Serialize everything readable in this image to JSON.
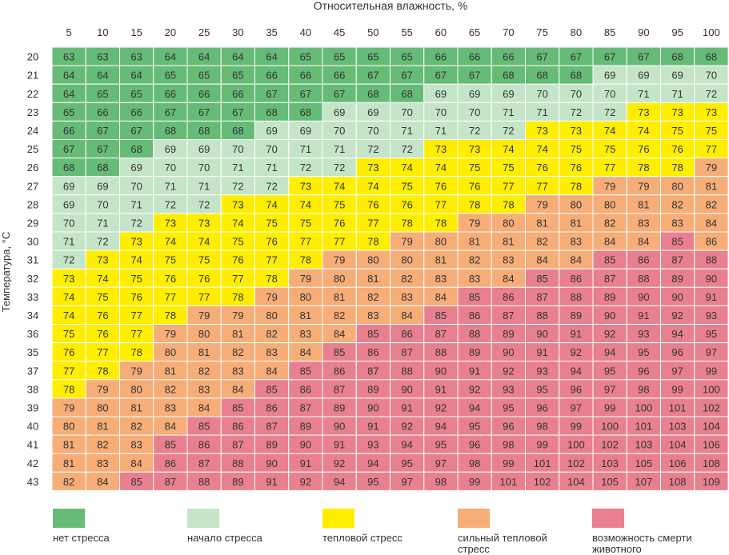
{
  "chart_data": {
    "type": "heatmap",
    "title": "",
    "xlabel": "Относительная влажность, %",
    "ylabel": "Температура, °C",
    "x": [
      5,
      10,
      15,
      20,
      25,
      30,
      35,
      40,
      45,
      50,
      55,
      60,
      65,
      70,
      75,
      80,
      85,
      90,
      95,
      100
    ],
    "y": [
      20,
      21,
      22,
      23,
      24,
      25,
      26,
      27,
      28,
      29,
      30,
      31,
      32,
      33,
      34,
      36,
      35,
      37,
      38,
      39,
      40,
      41,
      42,
      43
    ],
    "values": [
      [
        63,
        63,
        63,
        64,
        64,
        64,
        64,
        65,
        65,
        65,
        65,
        66,
        66,
        66,
        67,
        67,
        67,
        67,
        68,
        68
      ],
      [
        64,
        64,
        64,
        65,
        65,
        65,
        66,
        66,
        66,
        67,
        67,
        67,
        67,
        68,
        68,
        68,
        69,
        69,
        69,
        70
      ],
      [
        64,
        65,
        65,
        66,
        66,
        66,
        67,
        67,
        67,
        68,
        68,
        69,
        69,
        69,
        70,
        70,
        70,
        71,
        71,
        72
      ],
      [
        65,
        66,
        66,
        67,
        67,
        67,
        68,
        68,
        69,
        69,
        70,
        70,
        70,
        71,
        71,
        72,
        72,
        73,
        73,
        73
      ],
      [
        66,
        67,
        67,
        68,
        68,
        68,
        69,
        69,
        70,
        70,
        71,
        71,
        72,
        72,
        73,
        73,
        74,
        74,
        75,
        75
      ],
      [
        67,
        67,
        68,
        69,
        69,
        70,
        70,
        71,
        71,
        72,
        72,
        73,
        73,
        74,
        74,
        75,
        75,
        76,
        76,
        77
      ],
      [
        68,
        68,
        69,
        70,
        70,
        71,
        71,
        72,
        72,
        73,
        74,
        74,
        75,
        75,
        76,
        76,
        77,
        78,
        78,
        79
      ],
      [
        69,
        69,
        70,
        71,
        71,
        72,
        72,
        73,
        74,
        74,
        75,
        76,
        76,
        77,
        77,
        78,
        79,
        79,
        80,
        81
      ],
      [
        69,
        70,
        71,
        72,
        72,
        73,
        74,
        74,
        75,
        76,
        76,
        77,
        78,
        78,
        79,
        80,
        80,
        81,
        82,
        82
      ],
      [
        70,
        71,
        72,
        73,
        73,
        74,
        75,
        75,
        76,
        77,
        78,
        78,
        79,
        80,
        81,
        81,
        82,
        83,
        83,
        84
      ],
      [
        71,
        72,
        73,
        74,
        74,
        75,
        76,
        77,
        77,
        78,
        79,
        80,
        81,
        81,
        82,
        83,
        84,
        84,
        85,
        86
      ],
      [
        72,
        73,
        74,
        75,
        75,
        76,
        77,
        78,
        79,
        80,
        80,
        81,
        82,
        83,
        84,
        84,
        85,
        86,
        87,
        88
      ],
      [
        73,
        74,
        75,
        76,
        76,
        77,
        78,
        79,
        80,
        81,
        82,
        83,
        83,
        84,
        85,
        86,
        87,
        88,
        89,
        90
      ],
      [
        74,
        75,
        76,
        77,
        77,
        78,
        79,
        80,
        81,
        82,
        83,
        84,
        85,
        86,
        87,
        88,
        89,
        90,
        90,
        91
      ],
      [
        74,
        76,
        77,
        78,
        79,
        79,
        80,
        81,
        82,
        83,
        84,
        85,
        86,
        87,
        88,
        89,
        90,
        91,
        92,
        93
      ],
      [
        75,
        76,
        77,
        79,
        80,
        81,
        82,
        83,
        84,
        85,
        86,
        87,
        88,
        89,
        90,
        91,
        92,
        93,
        94,
        95
      ],
      [
        76,
        77,
        78,
        80,
        81,
        82,
        83,
        84,
        85,
        86,
        87,
        88,
        89,
        90,
        91,
        92,
        94,
        95,
        96,
        97
      ],
      [
        77,
        78,
        79,
        81,
        82,
        83,
        84,
        85,
        86,
        87,
        88,
        90,
        91,
        92,
        93,
        94,
        95,
        96,
        97,
        99
      ],
      [
        78,
        79,
        80,
        82,
        83,
        84,
        85,
        86,
        87,
        89,
        90,
        91,
        92,
        93,
        95,
        96,
        97,
        98,
        99,
        100
      ],
      [
        79,
        80,
        81,
        83,
        84,
        85,
        86,
        87,
        89,
        90,
        91,
        92,
        94,
        95,
        96,
        97,
        99,
        100,
        101,
        102
      ],
      [
        80,
        81,
        82,
        84,
        85,
        86,
        87,
        89,
        90,
        91,
        92,
        94,
        95,
        96,
        98,
        99,
        100,
        101,
        103,
        104
      ],
      [
        81,
        82,
        83,
        85,
        86,
        87,
        89,
        90,
        91,
        93,
        94,
        95,
        96,
        98,
        99,
        100,
        102,
        103,
        104,
        106
      ],
      [
        81,
        83,
        84,
        86,
        87,
        88,
        90,
        91,
        92,
        94,
        95,
        97,
        98,
        99,
        101,
        102,
        103,
        105,
        106,
        108
      ],
      [
        82,
        84,
        85,
        87,
        88,
        89,
        91,
        92,
        94,
        95,
        97,
        98,
        99,
        101,
        102,
        104,
        105,
        107,
        108,
        109
      ]
    ],
    "categories": [
      {
        "label": "нет стресса",
        "color": "#66bb77"
      },
      {
        "label": "начало стресса",
        "color": "#c5e5c9"
      },
      {
        "label": "тепловой стресс",
        "color": "#ffee00"
      },
      {
        "label": "сильный тепловой стресс",
        "color": "#f6ad77"
      },
      {
        "label": "возможность смерти животного",
        "color": "#e8808f"
      }
    ],
    "category_map": [
      [
        0,
        0,
        0,
        0,
        0,
        0,
        0,
        0,
        0,
        0,
        0,
        0,
        0,
        0,
        0,
        0,
        0,
        0,
        0,
        0
      ],
      [
        0,
        0,
        0,
        0,
        0,
        0,
        0,
        0,
        0,
        0,
        0,
        0,
        0,
        0,
        0,
        0,
        1,
        1,
        1,
        1
      ],
      [
        0,
        0,
        0,
        0,
        0,
        0,
        0,
        0,
        0,
        0,
        0,
        1,
        1,
        1,
        1,
        1,
        1,
        1,
        1,
        1
      ],
      [
        0,
        0,
        0,
        0,
        0,
        0,
        0,
        0,
        1,
        1,
        1,
        1,
        1,
        1,
        1,
        1,
        1,
        2,
        2,
        2
      ],
      [
        0,
        0,
        0,
        0,
        0,
        0,
        1,
        1,
        1,
        1,
        1,
        1,
        1,
        1,
        2,
        2,
        2,
        2,
        2,
        2
      ],
      [
        0,
        0,
        0,
        1,
        1,
        1,
        1,
        1,
        1,
        1,
        1,
        2,
        2,
        2,
        2,
        2,
        2,
        2,
        2,
        2
      ],
      [
        0,
        0,
        1,
        1,
        1,
        1,
        1,
        1,
        1,
        2,
        2,
        2,
        2,
        2,
        2,
        2,
        2,
        2,
        2,
        3
      ],
      [
        1,
        1,
        1,
        1,
        1,
        1,
        1,
        2,
        2,
        2,
        2,
        2,
        2,
        2,
        2,
        2,
        3,
        3,
        3,
        3
      ],
      [
        1,
        1,
        1,
        1,
        1,
        2,
        2,
        2,
        2,
        2,
        2,
        2,
        2,
        2,
        3,
        3,
        3,
        3,
        3,
        3
      ],
      [
        1,
        1,
        1,
        2,
        2,
        2,
        2,
        2,
        2,
        2,
        2,
        2,
        3,
        3,
        3,
        3,
        3,
        3,
        3,
        3
      ],
      [
        1,
        1,
        2,
        2,
        2,
        2,
        2,
        2,
        2,
        2,
        3,
        3,
        3,
        3,
        3,
        3,
        3,
        3,
        4,
        3
      ],
      [
        1,
        2,
        2,
        2,
        2,
        2,
        2,
        2,
        3,
        3,
        3,
        3,
        3,
        3,
        3,
        3,
        4,
        4,
        4,
        4
      ],
      [
        2,
        2,
        2,
        2,
        2,
        2,
        2,
        3,
        3,
        3,
        3,
        3,
        3,
        3,
        4,
        4,
        4,
        4,
        4,
        4
      ],
      [
        2,
        2,
        2,
        2,
        2,
        2,
        3,
        3,
        3,
        3,
        3,
        3,
        4,
        4,
        4,
        4,
        4,
        4,
        4,
        4
      ],
      [
        2,
        2,
        2,
        2,
        3,
        3,
        3,
        3,
        3,
        3,
        3,
        4,
        4,
        4,
        4,
        4,
        4,
        4,
        4,
        4
      ],
      [
        2,
        2,
        2,
        3,
        3,
        3,
        3,
        3,
        3,
        4,
        4,
        4,
        4,
        4,
        4,
        4,
        4,
        4,
        4,
        4
      ],
      [
        2,
        2,
        2,
        3,
        3,
        3,
        3,
        3,
        4,
        4,
        4,
        4,
        4,
        4,
        4,
        4,
        4,
        4,
        4,
        4
      ],
      [
        2,
        2,
        3,
        3,
        3,
        3,
        3,
        4,
        4,
        4,
        4,
        4,
        4,
        4,
        4,
        4,
        4,
        4,
        4,
        4
      ],
      [
        2,
        3,
        3,
        3,
        3,
        3,
        4,
        4,
        4,
        4,
        4,
        4,
        4,
        4,
        4,
        4,
        4,
        4,
        4,
        4
      ],
      [
        3,
        3,
        3,
        3,
        3,
        4,
        4,
        4,
        4,
        4,
        4,
        4,
        4,
        4,
        4,
        4,
        4,
        4,
        4,
        4
      ],
      [
        3,
        3,
        3,
        3,
        4,
        4,
        4,
        4,
        4,
        4,
        4,
        4,
        4,
        4,
        4,
        4,
        4,
        4,
        4,
        4
      ],
      [
        3,
        3,
        3,
        4,
        4,
        4,
        4,
        4,
        4,
        4,
        4,
        4,
        4,
        4,
        4,
        4,
        4,
        4,
        4,
        4
      ],
      [
        3,
        3,
        3,
        4,
        4,
        4,
        4,
        4,
        4,
        4,
        4,
        4,
        4,
        4,
        4,
        4,
        4,
        4,
        4,
        4
      ],
      [
        3,
        3,
        4,
        4,
        4,
        4,
        4,
        4,
        4,
        4,
        4,
        4,
        4,
        4,
        4,
        4,
        4,
        4,
        4,
        4
      ]
    ]
  }
}
